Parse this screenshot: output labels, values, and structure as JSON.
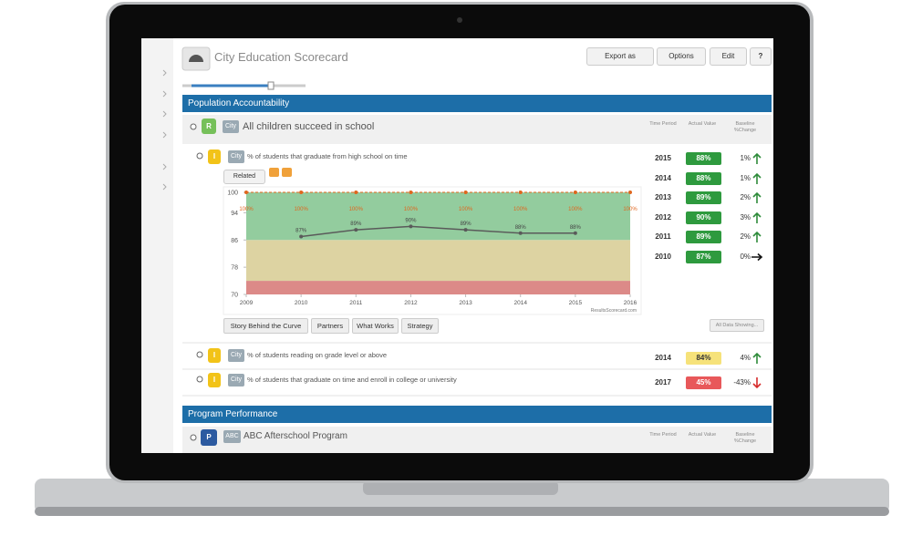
{
  "header": {
    "title": "City Education Scorecard",
    "buttons": [
      "Export as",
      "Options",
      "Edit",
      "?"
    ]
  },
  "sections": [
    {
      "title": "Population Accountability",
      "result": {
        "badge": "R",
        "tag": "City",
        "label": "All children succeed in school"
      },
      "columns": [
        "Time Period",
        "Actual Value",
        "Baseline %Change"
      ],
      "indicators": [
        {
          "badge": "I",
          "tag": "City",
          "label": "% of students that graduate from high school on time",
          "rows": [
            {
              "period": "2015",
              "value": "88%",
              "change": "1%",
              "color": "#2e9a3e",
              "arrow": "up"
            },
            {
              "period": "2014",
              "value": "88%",
              "change": "1%",
              "color": "#2e9a3e",
              "arrow": "up"
            },
            {
              "period": "2013",
              "value": "89%",
              "change": "2%",
              "color": "#2e9a3e",
              "arrow": "up"
            },
            {
              "period": "2012",
              "value": "90%",
              "change": "3%",
              "color": "#2e9a3e",
              "arrow": "up"
            },
            {
              "period": "2011",
              "value": "89%",
              "change": "2%",
              "color": "#2e9a3e",
              "arrow": "up"
            },
            {
              "period": "2010",
              "value": "87%",
              "change": "0%",
              "color": "#2e9a3e",
              "arrow": "right"
            }
          ]
        },
        {
          "badge": "I",
          "tag": "City",
          "label": "% of students reading on grade level or above",
          "rows": [
            {
              "period": "2014",
              "value": "84%",
              "change": "4%",
              "color": "#f6e27a",
              "arrow": "up"
            }
          ]
        },
        {
          "badge": "I",
          "tag": "City",
          "label": "% of students that graduate on time and enroll in college or university",
          "rows": [
            {
              "period": "2017",
              "value": "45%",
              "change": "-43%",
              "color": "#e8585a",
              "arrow": "down"
            }
          ]
        }
      ]
    },
    {
      "title": "Program Performance",
      "program": {
        "badge": "P",
        "tag": "ABC",
        "label": "ABC Afterschool Program"
      },
      "columns": [
        "Time Period",
        "Actual Value",
        "Baseline %Change"
      ]
    }
  ],
  "related": "Related",
  "tabs": [
    "Story Behind the Curve",
    "Partners",
    "What Works",
    "Strategy"
  ],
  "all_data": "All Data Showing...",
  "chart_data": {
    "type": "line",
    "x": [
      2009,
      2010,
      2011,
      2012,
      2013,
      2014,
      2015,
      2016
    ],
    "xlim": [
      2009,
      2016
    ],
    "xticks": [
      2009,
      2010,
      2011,
      2012,
      2013,
      2014,
      2015,
      2016
    ],
    "ylim": [
      70,
      100
    ],
    "yticks": [
      70,
      78,
      86,
      94,
      100
    ],
    "bands": [
      {
        "from": 70,
        "to": 74,
        "color": "#dc8a88"
      },
      {
        "from": 74,
        "to": 86,
        "color": "#ddd3a2"
      },
      {
        "from": 86,
        "to": 100,
        "color": "#93cc9e"
      }
    ],
    "series": [
      {
        "color": "#e0661e",
        "values": [
          100,
          100,
          100,
          100,
          100,
          100,
          100,
          100
        ],
        "value_labels": [
          "100%",
          "100%",
          "100%",
          "100%",
          "100%",
          "100%",
          "100%",
          "100%"
        ]
      },
      {
        "color": "#5a5a5a",
        "values": [
          null,
          87,
          89,
          90,
          89,
          88,
          88,
          null
        ],
        "value_labels": [
          null,
          "87%",
          "89%",
          "90%",
          "89%",
          "88%",
          "88%",
          null
        ]
      }
    ],
    "watermark": "ResultsScorecard.com"
  }
}
